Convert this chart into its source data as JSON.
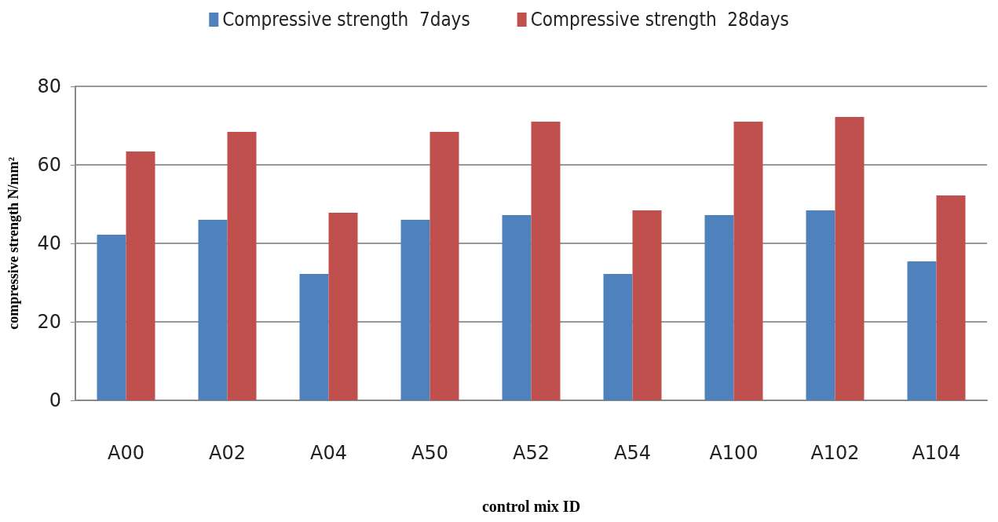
{
  "chart_data": {
    "type": "bar",
    "xlabel": "control mix ID",
    "ylabel": "compressive strength N/mm²",
    "categories": [
      "A00",
      "A02",
      "A04",
      "A50",
      "A52",
      "A54",
      "A100",
      "A102",
      "A104"
    ],
    "series": [
      {
        "name": "Compressive strength  7days",
        "color": "#4f81bd",
        "values": [
          42.2,
          46,
          32.2,
          46,
          47.2,
          32.2,
          47.2,
          48.4,
          35.4
        ]
      },
      {
        "name": "Compressive strength  28days",
        "color": "#c0504d",
        "values": [
          63.4,
          68.4,
          47.8,
          68.4,
          71,
          48.4,
          71,
          72.2,
          52.2
        ]
      }
    ],
    "ylim": [
      0,
      80
    ],
    "yticks": [
      0,
      20,
      40,
      60,
      80
    ],
    "grid": "y",
    "legend": "top"
  }
}
